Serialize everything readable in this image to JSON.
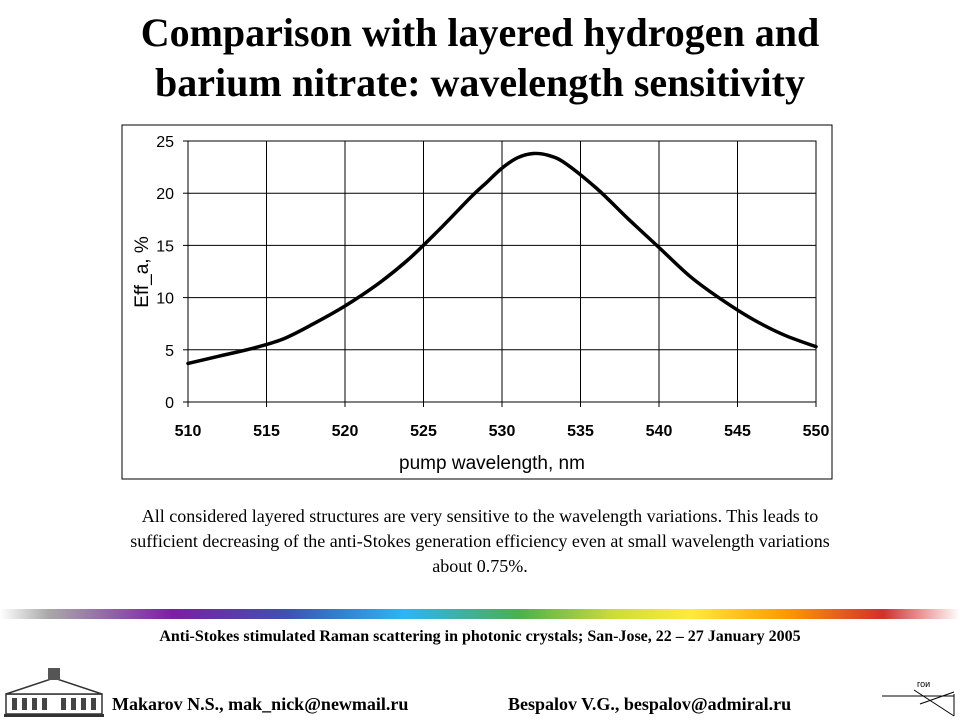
{
  "header": {
    "title_line1": "Comparison with layered hydrogen and",
    "title_line2": "barium nitrate: wavelength sensitivity"
  },
  "chart_data": {
    "type": "line",
    "xlabel": "pump wavelength, nm",
    "ylabel": "Eff_a, %",
    "xlim": [
      510,
      550
    ],
    "ylim": [
      0,
      25
    ],
    "xticks": [
      "510",
      "515",
      "520",
      "525",
      "530",
      "535",
      "540",
      "545",
      "550"
    ],
    "yticks": [
      "0",
      "5",
      "10",
      "15",
      "20",
      "25"
    ],
    "grid": true,
    "legend": "none",
    "series": [
      {
        "x": [
          510,
          512,
          514,
          516,
          518,
          520,
          522,
          524,
          526,
          528,
          529,
          530,
          531,
          532,
          533,
          534,
          536,
          538,
          540,
          542,
          544,
          546,
          548,
          550
        ],
        "y": [
          3.7,
          4.4,
          5.1,
          6.0,
          7.5,
          9.2,
          11.2,
          13.6,
          16.5,
          19.6,
          21.0,
          22.4,
          23.4,
          23.8,
          23.6,
          22.9,
          20.5,
          17.6,
          14.8,
          12.0,
          9.8,
          7.9,
          6.4,
          5.3
        ]
      }
    ]
  },
  "description": {
    "line1": "All considered layered structures are very sensitive to the wavelength variations. This leads to",
    "line2": "sufficient decreasing of the anti-Stokes generation efficiency even at small wavelength variations",
    "line3": "about 0.75%."
  },
  "footer": {
    "conference": "Anti-Stokes stimulated Raman scattering in photonic crystals; San-Jose, 22 – 27 January  2005",
    "author1": "Makarov N.S., mak_nick@newmail.ru",
    "author2": "Bespalov V.G., bespalov@admiral.ru",
    "logo_right_text": "гои"
  }
}
